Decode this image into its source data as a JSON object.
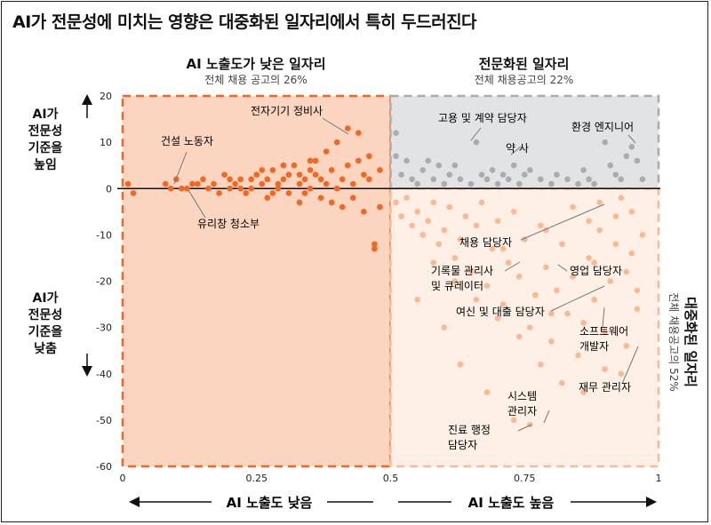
{
  "title": "AI가 전문성에 미치는 영향은 대중화된 일자리에서 특히 두드러진다",
  "sections": {
    "low": {
      "title": "AI 노출도가 낮은 일자리",
      "subtitle": "전체 채용 공고의 26%"
    },
    "specialized": {
      "title": "전문화된 일자리",
      "subtitle": "전체 채용공고의 22%"
    },
    "generalized": {
      "title": "대중화된 일자리",
      "subtitle": "전체 채용공고의 52%"
    }
  },
  "side_labels": {
    "top": [
      "AI가",
      "전문성",
      "기준을",
      "높임"
    ],
    "bottom": [
      "AI가",
      "전문성",
      "기준을",
      "낮춤"
    ]
  },
  "x_axis_labels": {
    "low": "AI 노출도 낮음",
    "high": "AI 노출도 높음"
  },
  "colors": {
    "orange": "#f26722",
    "light_orange": "#fbb98f",
    "gray": "#a9adb1",
    "low_fill": "#fbd5c0",
    "high_fill": "#fef0e6",
    "spec_fill": "#e1e3e5"
  },
  "chart_data": {
    "type": "scatter",
    "xlim": [
      0,
      1
    ],
    "ylim": [
      -60,
      20
    ],
    "xticks": [
      0,
      0.25,
      0.5,
      0.75,
      1
    ],
    "xtick_labels": [
      "0",
      "0.25",
      "0.5",
      "0.75",
      "1"
    ],
    "yticks": [
      20,
      10,
      0,
      -10,
      -20,
      -30,
      -40,
      -50,
      -60
    ],
    "ytick_labels": [
      "20",
      "10",
      "0",
      "-10",
      "-20",
      "-30",
      "-40",
      "-50",
      "-60"
    ],
    "annotations": [
      {
        "lines": [
          "전자기기 정비사"
        ],
        "x": 0.42,
        "y": 12
      },
      {
        "lines": [
          "건설 노동자"
        ],
        "x": 0.12,
        "y": 1
      },
      {
        "lines": [
          "유리창 청소부"
        ],
        "x": 0.16,
        "y": 0
      },
      {
        "lines": [
          "고용 및 계약 담당자"
        ],
        "x": 0.66,
        "y": 10
      },
      {
        "lines": [
          "약 사"
        ],
        "x": 0.73,
        "y": 8
      },
      {
        "lines": [
          "환경 엔지니어"
        ],
        "x": 0.96,
        "y": 9
      },
      {
        "lines": [
          "채용 담당자"
        ],
        "x": 0.9,
        "y": -7
      },
      {
        "lines": [
          "기록물 관리사",
          "및 큐레이터"
        ],
        "x": 0.68,
        "y": -14
      },
      {
        "lines": [
          "영업 담당자"
        ],
        "x": 0.78,
        "y": -16
      },
      {
        "lines": [
          "여신 및 대출 담당자"
        ],
        "x": 0.91,
        "y": -21
      },
      {
        "lines": [
          "소프트웨어",
          "개발자"
        ],
        "x": 0.92,
        "y": -26
      },
      {
        "lines": [
          "재무 관리자"
        ],
        "x": 0.97,
        "y": -33
      },
      {
        "lines": [
          "시스템",
          "관리자"
        ],
        "x": 0.75,
        "y": -49
      },
      {
        "lines": [
          "진료 행정",
          "담당자"
        ],
        "x": 0.77,
        "y": -51
      }
    ],
    "series": [
      {
        "group": "low",
        "points": [
          [
            0.01,
            1
          ],
          [
            0.02,
            -1
          ],
          [
            0.08,
            1
          ],
          [
            0.09,
            0
          ],
          [
            0.1,
            2
          ],
          [
            0.12,
            0
          ],
          [
            0.13,
            1
          ],
          [
            0.15,
            2
          ],
          [
            0.16,
            0
          ],
          [
            0.17,
            1
          ],
          [
            0.18,
            -1
          ],
          [
            0.19,
            3
          ],
          [
            0.2,
            0
          ],
          [
            0.21,
            1
          ],
          [
            0.22,
            2
          ],
          [
            0.23,
            -1
          ],
          [
            0.24,
            0
          ],
          [
            0.25,
            3
          ],
          [
            0.26,
            1
          ],
          [
            0.27,
            2
          ],
          [
            0.27,
            -2
          ],
          [
            0.28,
            4
          ],
          [
            0.29,
            0
          ],
          [
            0.3,
            2
          ],
          [
            0.31,
            -1
          ],
          [
            0.32,
            5
          ],
          [
            0.33,
            1
          ],
          [
            0.33,
            -3
          ],
          [
            0.34,
            2
          ],
          [
            0.35,
            6
          ],
          [
            0.35,
            0
          ],
          [
            0.36,
            3
          ],
          [
            0.37,
            -2
          ],
          [
            0.38,
            1
          ],
          [
            0.38,
            8
          ],
          [
            0.39,
            4
          ],
          [
            0.4,
            0
          ],
          [
            0.4,
            10
          ],
          [
            0.41,
            2
          ],
          [
            0.41,
            -4
          ],
          [
            0.42,
            5
          ],
          [
            0.42,
            13
          ],
          [
            0.43,
            1
          ],
          [
            0.43,
            -2
          ],
          [
            0.44,
            6
          ],
          [
            0.44,
            12
          ],
          [
            0.45,
            3
          ],
          [
            0.45,
            -5
          ],
          [
            0.46,
            2
          ],
          [
            0.46,
            7
          ],
          [
            0.47,
            -12
          ],
          [
            0.47,
            -13
          ],
          [
            0.48,
            -4
          ],
          [
            0.48,
            4
          ],
          [
            0.3,
            5
          ],
          [
            0.26,
            4
          ],
          [
            0.24,
            2
          ],
          [
            0.28,
            -1
          ],
          [
            0.31,
            3
          ],
          [
            0.34,
            -1
          ],
          [
            0.36,
            6
          ],
          [
            0.39,
            -3
          ],
          [
            0.29,
            1
          ],
          [
            0.22,
            0
          ],
          [
            0.2,
            2
          ],
          [
            0.14,
            1
          ],
          [
            0.11,
            0
          ],
          [
            0.35,
            4
          ],
          [
            0.37,
            2
          ],
          [
            0.33,
            3
          ]
        ]
      },
      {
        "group": "specialized",
        "points": [
          [
            0.51,
            7
          ],
          [
            0.51,
            12
          ],
          [
            0.52,
            3
          ],
          [
            0.53,
            6
          ],
          [
            0.54,
            2
          ],
          [
            0.55,
            1
          ],
          [
            0.56,
            4
          ],
          [
            0.57,
            6
          ],
          [
            0.58,
            2
          ],
          [
            0.59,
            5
          ],
          [
            0.6,
            1
          ],
          [
            0.61,
            3
          ],
          [
            0.62,
            5
          ],
          [
            0.63,
            2
          ],
          [
            0.65,
            1
          ],
          [
            0.66,
            10
          ],
          [
            0.67,
            3
          ],
          [
            0.68,
            2
          ],
          [
            0.69,
            4
          ],
          [
            0.7,
            1
          ],
          [
            0.71,
            3
          ],
          [
            0.72,
            2
          ],
          [
            0.73,
            5
          ],
          [
            0.74,
            1
          ],
          [
            0.75,
            3
          ],
          [
            0.76,
            4
          ],
          [
            0.78,
            2
          ],
          [
            0.8,
            1
          ],
          [
            0.81,
            3
          ],
          [
            0.83,
            2
          ],
          [
            0.85,
            1
          ],
          [
            0.86,
            4
          ],
          [
            0.87,
            2
          ],
          [
            0.88,
            1
          ],
          [
            0.9,
            10
          ],
          [
            0.91,
            5
          ],
          [
            0.92,
            3
          ],
          [
            0.93,
            2
          ],
          [
            0.94,
            7
          ],
          [
            0.95,
            9
          ],
          [
            0.96,
            6
          ],
          [
            0.97,
            2
          ]
        ]
      },
      {
        "group": "generalized",
        "points": [
          [
            0.51,
            -3
          ],
          [
            0.52,
            -6
          ],
          [
            0.53,
            -2
          ],
          [
            0.54,
            -8
          ],
          [
            0.55,
            -5
          ],
          [
            0.56,
            -10
          ],
          [
            0.57,
            -7
          ],
          [
            0.58,
            -3
          ],
          [
            0.59,
            -12
          ],
          [
            0.6,
            -9
          ],
          [
            0.61,
            -4
          ],
          [
            0.62,
            -15
          ],
          [
            0.63,
            -11
          ],
          [
            0.64,
            -6
          ],
          [
            0.65,
            -18
          ],
          [
            0.66,
            -8
          ],
          [
            0.67,
            -3
          ],
          [
            0.68,
            -21
          ],
          [
            0.69,
            -13
          ],
          [
            0.7,
            -7
          ],
          [
            0.71,
            -25
          ],
          [
            0.72,
            -16
          ],
          [
            0.73,
            -5
          ],
          [
            0.74,
            -19
          ],
          [
            0.75,
            -11
          ],
          [
            0.76,
            -30
          ],
          [
            0.77,
            -23
          ],
          [
            0.78,
            -8
          ],
          [
            0.79,
            -17
          ],
          [
            0.8,
            -33
          ],
          [
            0.81,
            -22
          ],
          [
            0.82,
            -12
          ],
          [
            0.83,
            -27
          ],
          [
            0.84,
            -4
          ],
          [
            0.85,
            -36
          ],
          [
            0.86,
            -29
          ],
          [
            0.87,
            -15
          ],
          [
            0.88,
            -24
          ],
          [
            0.89,
            -9
          ],
          [
            0.9,
            -31
          ],
          [
            0.91,
            -20
          ],
          [
            0.92,
            -6
          ],
          [
            0.93,
            -40
          ],
          [
            0.94,
            -34
          ],
          [
            0.95,
            -14
          ],
          [
            0.96,
            -26
          ],
          [
            0.97,
            -10
          ],
          [
            0.58,
            -16
          ],
          [
            0.62,
            -20
          ],
          [
            0.66,
            -24
          ],
          [
            0.7,
            -28
          ],
          [
            0.74,
            -32
          ],
          [
            0.78,
            -38
          ],
          [
            0.82,
            -42
          ],
          [
            0.86,
            -44
          ],
          [
            0.9,
            -39
          ],
          [
            0.73,
            -50
          ],
          [
            0.76,
            -51
          ],
          [
            0.63,
            -38
          ],
          [
            0.55,
            -24
          ],
          [
            0.6,
            -30
          ],
          [
            0.68,
            -44
          ],
          [
            0.88,
            -16
          ],
          [
            0.92,
            -12
          ],
          [
            0.94,
            -18
          ],
          [
            0.96,
            -22
          ],
          [
            0.87,
            -7
          ],
          [
            0.89,
            -3
          ],
          [
            0.93,
            -2
          ],
          [
            0.95,
            -5
          ],
          [
            0.71,
            -13
          ],
          [
            0.79,
            -9
          ],
          [
            0.84,
            -19
          ],
          [
            0.8,
            -27
          ]
        ]
      }
    ]
  }
}
